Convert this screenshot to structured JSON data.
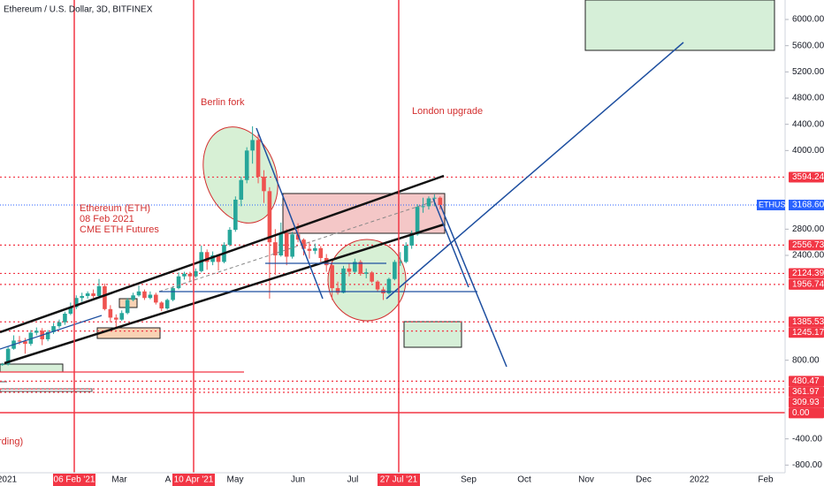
{
  "chart_data": {
    "type": "candlestick",
    "title": "Ethereum / U.S. Dollar, 3D, BITFINEX",
    "symbol": "ETHUSD",
    "up_color": "#26a69a",
    "down_color": "#ef5350",
    "level_color": "#f23645",
    "ylim": [
      -917,
      6297
    ],
    "yticks": [
      {
        "value": 6000,
        "label": "6000.00"
      },
      {
        "value": 5600,
        "label": "5600.00"
      },
      {
        "value": 5200,
        "label": "5200.00"
      },
      {
        "value": 4800,
        "label": "4800.00"
      },
      {
        "value": 4400,
        "label": "4400.00"
      },
      {
        "value": 4000,
        "label": "4000.00"
      },
      {
        "value": 2800,
        "label": "2800.00"
      },
      {
        "value": 2400,
        "label": "2400.00"
      },
      {
        "value": 800,
        "label": "800.00"
      },
      {
        "value": -400,
        "label": "-400.00"
      },
      {
        "value": -800,
        "label": "-800.00"
      }
    ],
    "levels": [
      {
        "value": 3594.24,
        "label": "3594.24"
      },
      {
        "value": 2556.73,
        "label": "2556.73"
      },
      {
        "value": 2124.39,
        "label": "2124.39"
      },
      {
        "value": 1956.74,
        "label": "1956.74"
      },
      {
        "value": 1385.53,
        "label": "1385.53"
      },
      {
        "value": 1245.17,
        "label": "1245.17"
      },
      {
        "value": 480.47,
        "label": "480.47"
      },
      {
        "value": 361.97,
        "label": "361.97"
      },
      {
        "value": 309.93,
        "label": "309.93"
      },
      {
        "value": 0,
        "label": "0.00"
      }
    ],
    "last_price": {
      "value": 3168.6,
      "label": "3168.60"
    },
    "xticks": [
      "2021",
      {
        "label": "06 Feb '21",
        "highlight": true
      },
      "Mar",
      "A",
      {
        "label": "10 Apr '21",
        "highlight": true
      },
      "May",
      "Jun",
      "Jul",
      {
        "label": "27 Jul '21",
        "highlight": true
      },
      "Sep",
      "Oct",
      "Nov",
      "Dec",
      "2022",
      "Feb"
    ],
    "annotations": [
      "Berlin fork",
      "London upgrade",
      "Ethereum (ETH)",
      "08 Feb 2021",
      "CME ETH Futures",
      "rding)"
    ],
    "candles": [
      [
        730,
        760,
        715,
        740
      ],
      [
        740,
        1010,
        720,
        975
      ],
      [
        975,
        1180,
        960,
        1100
      ],
      [
        1100,
        1170,
        1040,
        1090
      ],
      [
        1090,
        1140,
        900,
        1050
      ],
      [
        1050,
        1260,
        1020,
        1220
      ],
      [
        1220,
        1300,
        1180,
        1250
      ],
      [
        1250,
        1290,
        1030,
        1120
      ],
      [
        1120,
        1260,
        1090,
        1230
      ],
      [
        1230,
        1370,
        1200,
        1320
      ],
      [
        1320,
        1420,
        1290,
        1380
      ],
      [
        1380,
        1540,
        1340,
        1510
      ],
      [
        1510,
        1680,
        1490,
        1610
      ],
      [
        1610,
        1790,
        1580,
        1750
      ],
      [
        1750,
        1830,
        1690,
        1780
      ],
      [
        1780,
        1850,
        1740,
        1820
      ],
      [
        1820,
        1880,
        1750,
        1780
      ],
      [
        1780,
        2040,
        1760,
        1930
      ],
      [
        1930,
        1970,
        1560,
        1580
      ],
      [
        1580,
        1640,
        1380,
        1450
      ],
      [
        1450,
        1500,
        1300,
        1420
      ],
      [
        1420,
        1560,
        1400,
        1520
      ],
      [
        1520,
        1750,
        1500,
        1720
      ],
      [
        1720,
        1830,
        1700,
        1790
      ],
      [
        1790,
        1940,
        1770,
        1850
      ],
      [
        1850,
        1880,
        1720,
        1750
      ],
      [
        1750,
        1850,
        1730,
        1800
      ],
      [
        1800,
        1830,
        1650,
        1680
      ],
      [
        1680,
        1700,
        1550,
        1590
      ],
      [
        1590,
        1740,
        1570,
        1720
      ],
      [
        1720,
        1930,
        1700,
        1900
      ],
      [
        1900,
        2140,
        1880,
        2080
      ],
      [
        2080,
        2150,
        2030,
        2120
      ],
      [
        2120,
        2150,
        1990,
        2080
      ],
      [
        2080,
        2200,
        2060,
        2160
      ],
      [
        2160,
        2550,
        2140,
        2450
      ],
      [
        2450,
        2490,
        2180,
        2300
      ],
      [
        2300,
        2460,
        2250,
        2400
      ],
      [
        2400,
        2420,
        2170,
        2300
      ],
      [
        2300,
        2600,
        2280,
        2560
      ],
      [
        2560,
        2830,
        2540,
        2790
      ],
      [
        2790,
        3300,
        2760,
        3250
      ],
      [
        3250,
        3600,
        3150,
        3550
      ],
      [
        3550,
        4050,
        3500,
        4000
      ],
      [
        4000,
        4370,
        3800,
        4160
      ],
      [
        4160,
        4250,
        3500,
        3600
      ],
      [
        3600,
        3700,
        3200,
        3380
      ],
      [
        3380,
        3440,
        1740,
        2600
      ],
      [
        2600,
        2800,
        2100,
        2400
      ],
      [
        2400,
        2900,
        2380,
        2740
      ],
      [
        2740,
        2800,
        2250,
        2380
      ],
      [
        2380,
        2760,
        2350,
        2720
      ],
      [
        2720,
        2890,
        2600,
        2640
      ],
      [
        2640,
        2660,
        2400,
        2500
      ],
      [
        2500,
        2610,
        2350,
        2470
      ],
      [
        2470,
        2580,
        2420,
        2510
      ],
      [
        2510,
        2540,
        2300,
        2360
      ],
      [
        2360,
        2420,
        2150,
        2250
      ],
      [
        2250,
        2280,
        1720,
        1900
      ],
      [
        1900,
        2000,
        1800,
        1830
      ],
      [
        1830,
        2240,
        1820,
        2200
      ],
      [
        2200,
        2280,
        2080,
        2150
      ],
      [
        2150,
        2350,
        2130,
        2300
      ],
      [
        2300,
        2330,
        2090,
        2120
      ],
      [
        2120,
        2200,
        2050,
        2140
      ],
      [
        2140,
        2160,
        1980,
        2000
      ],
      [
        2000,
        2020,
        1850,
        1880
      ],
      [
        1880,
        1920,
        1720,
        1820
      ],
      [
        1820,
        2060,
        1800,
        2040
      ],
      [
        2040,
        2330,
        2020,
        2300
      ],
      [
        2300,
        2450,
        2240,
        2300
      ],
      [
        2300,
        2600,
        2280,
        2550
      ],
      [
        2550,
        2780,
        2500,
        2720
      ],
      [
        2720,
        3180,
        2700,
        3140
      ],
      [
        3140,
        3280,
        3050,
        3150
      ],
      [
        3150,
        3300,
        3100,
        3270
      ],
      [
        3270,
        3330,
        3150,
        3280
      ],
      [
        3280,
        3300,
        3100,
        3168.6
      ]
    ]
  }
}
